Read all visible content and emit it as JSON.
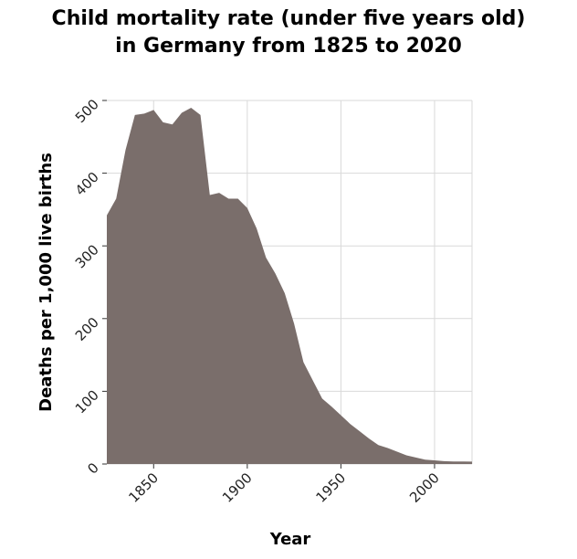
{
  "chart_data": {
    "type": "area",
    "title": [
      "Child mortality rate (under five years old)",
      "in Germany from 1825 to 2020"
    ],
    "xlabel": "Year",
    "ylabel": "Deaths per 1,000 live births",
    "xlim": [
      1825,
      2020
    ],
    "ylim": [
      0,
      500
    ],
    "x_ticks": [
      1850,
      1900,
      1950,
      2000
    ],
    "y_ticks": [
      0,
      100,
      200,
      300,
      400,
      500
    ],
    "grid": true,
    "fill_color": "#7a6e6b",
    "series": [
      {
        "x": [
          1825,
          1830,
          1835,
          1840,
          1845,
          1850,
          1855,
          1860,
          1865,
          1870,
          1875,
          1880,
          1885,
          1890,
          1895,
          1900,
          1905,
          1910,
          1915,
          1920,
          1925,
          1930,
          1935,
          1940,
          1945,
          1950,
          1955,
          1960,
          1965,
          1970,
          1975,
          1980,
          1985,
          1990,
          1995,
          2000,
          2005,
          2010,
          2015,
          2020
        ],
        "y": [
          342,
          365,
          432,
          480,
          482,
          487,
          470,
          467,
          483,
          490,
          480,
          370,
          373,
          365,
          365,
          352,
          324,
          284,
          262,
          235,
          193,
          140,
          115,
          90,
          79,
          67,
          55,
          45,
          35,
          26,
          22,
          17,
          12,
          9,
          6,
          5,
          4,
          3.5,
          3.5,
          3.3
        ]
      }
    ]
  }
}
